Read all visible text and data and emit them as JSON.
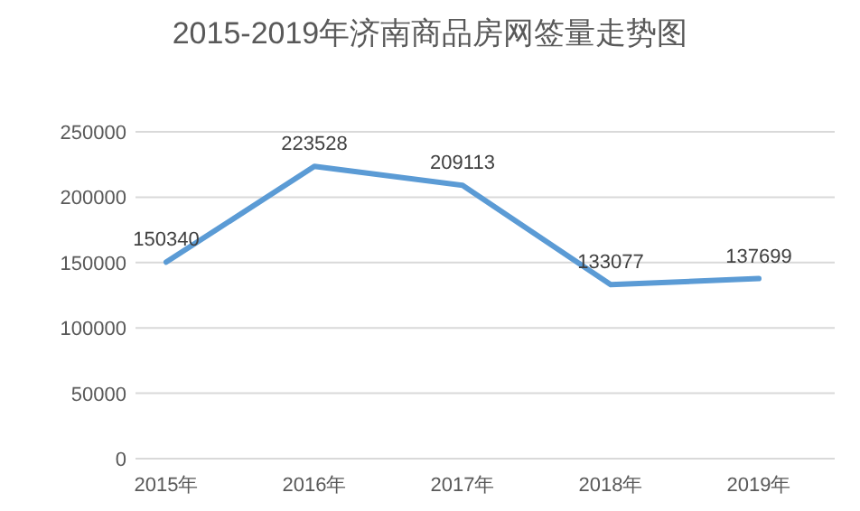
{
  "chart_data": {
    "type": "line",
    "title": "2015-2019年济南商品房网签量走势图",
    "categories": [
      "2015年",
      "2016年",
      "2017年",
      "2018年",
      "2019年"
    ],
    "series": [
      {
        "color": "#5b9bd5",
        "values": [
          150340,
          223528,
          209113,
          133077,
          137699
        ]
      }
    ],
    "ylim": [
      0,
      250000
    ],
    "yticks": [
      0,
      50000,
      100000,
      150000,
      200000,
      250000
    ],
    "grid": "y",
    "marker": "none",
    "line_style": "solid",
    "data_labels": true
  }
}
